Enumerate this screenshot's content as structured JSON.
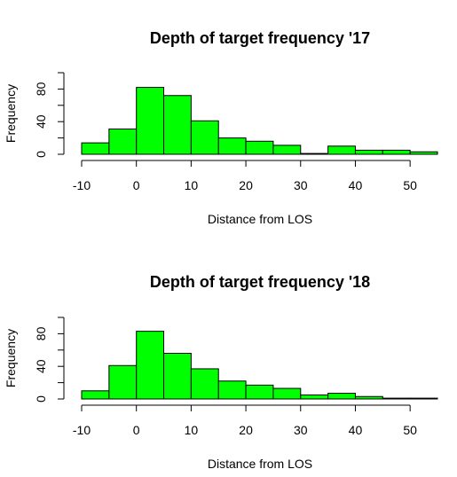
{
  "chart_data": [
    {
      "type": "bar",
      "title": "Depth of target frequency '17",
      "xlabel": "Distance from LOS",
      "ylabel": "Frequency",
      "bin_edges": [
        -10,
        -5,
        0,
        5,
        10,
        15,
        20,
        25,
        30,
        35,
        40,
        45,
        50,
        55
      ],
      "values": [
        14,
        31,
        82,
        72,
        41,
        20,
        16,
        11,
        1,
        10,
        5,
        5,
        3
      ],
      "xticks": [
        -10,
        0,
        10,
        20,
        30,
        40,
        50
      ],
      "yticks": [
        0,
        40,
        80
      ],
      "xlim": [
        -10,
        55
      ],
      "ylim": [
        0,
        100
      ],
      "bar_color": "#00ff00",
      "grid": false
    },
    {
      "type": "bar",
      "title": "Depth of target frequency '18",
      "xlabel": "Distance from LOS",
      "ylabel": "Frequency",
      "bin_edges": [
        -10,
        -5,
        0,
        5,
        10,
        15,
        20,
        25,
        30,
        35,
        40,
        45,
        50,
        55
      ],
      "values": [
        10,
        41,
        83,
        56,
        37,
        22,
        17,
        13,
        5,
        7,
        3,
        1,
        1
      ],
      "xticks": [
        -10,
        0,
        10,
        20,
        30,
        40,
        50
      ],
      "yticks": [
        0,
        40,
        80
      ],
      "xlim": [
        -10,
        55
      ],
      "ylim": [
        0,
        100
      ],
      "bar_color": "#00ff00",
      "grid": false
    }
  ]
}
